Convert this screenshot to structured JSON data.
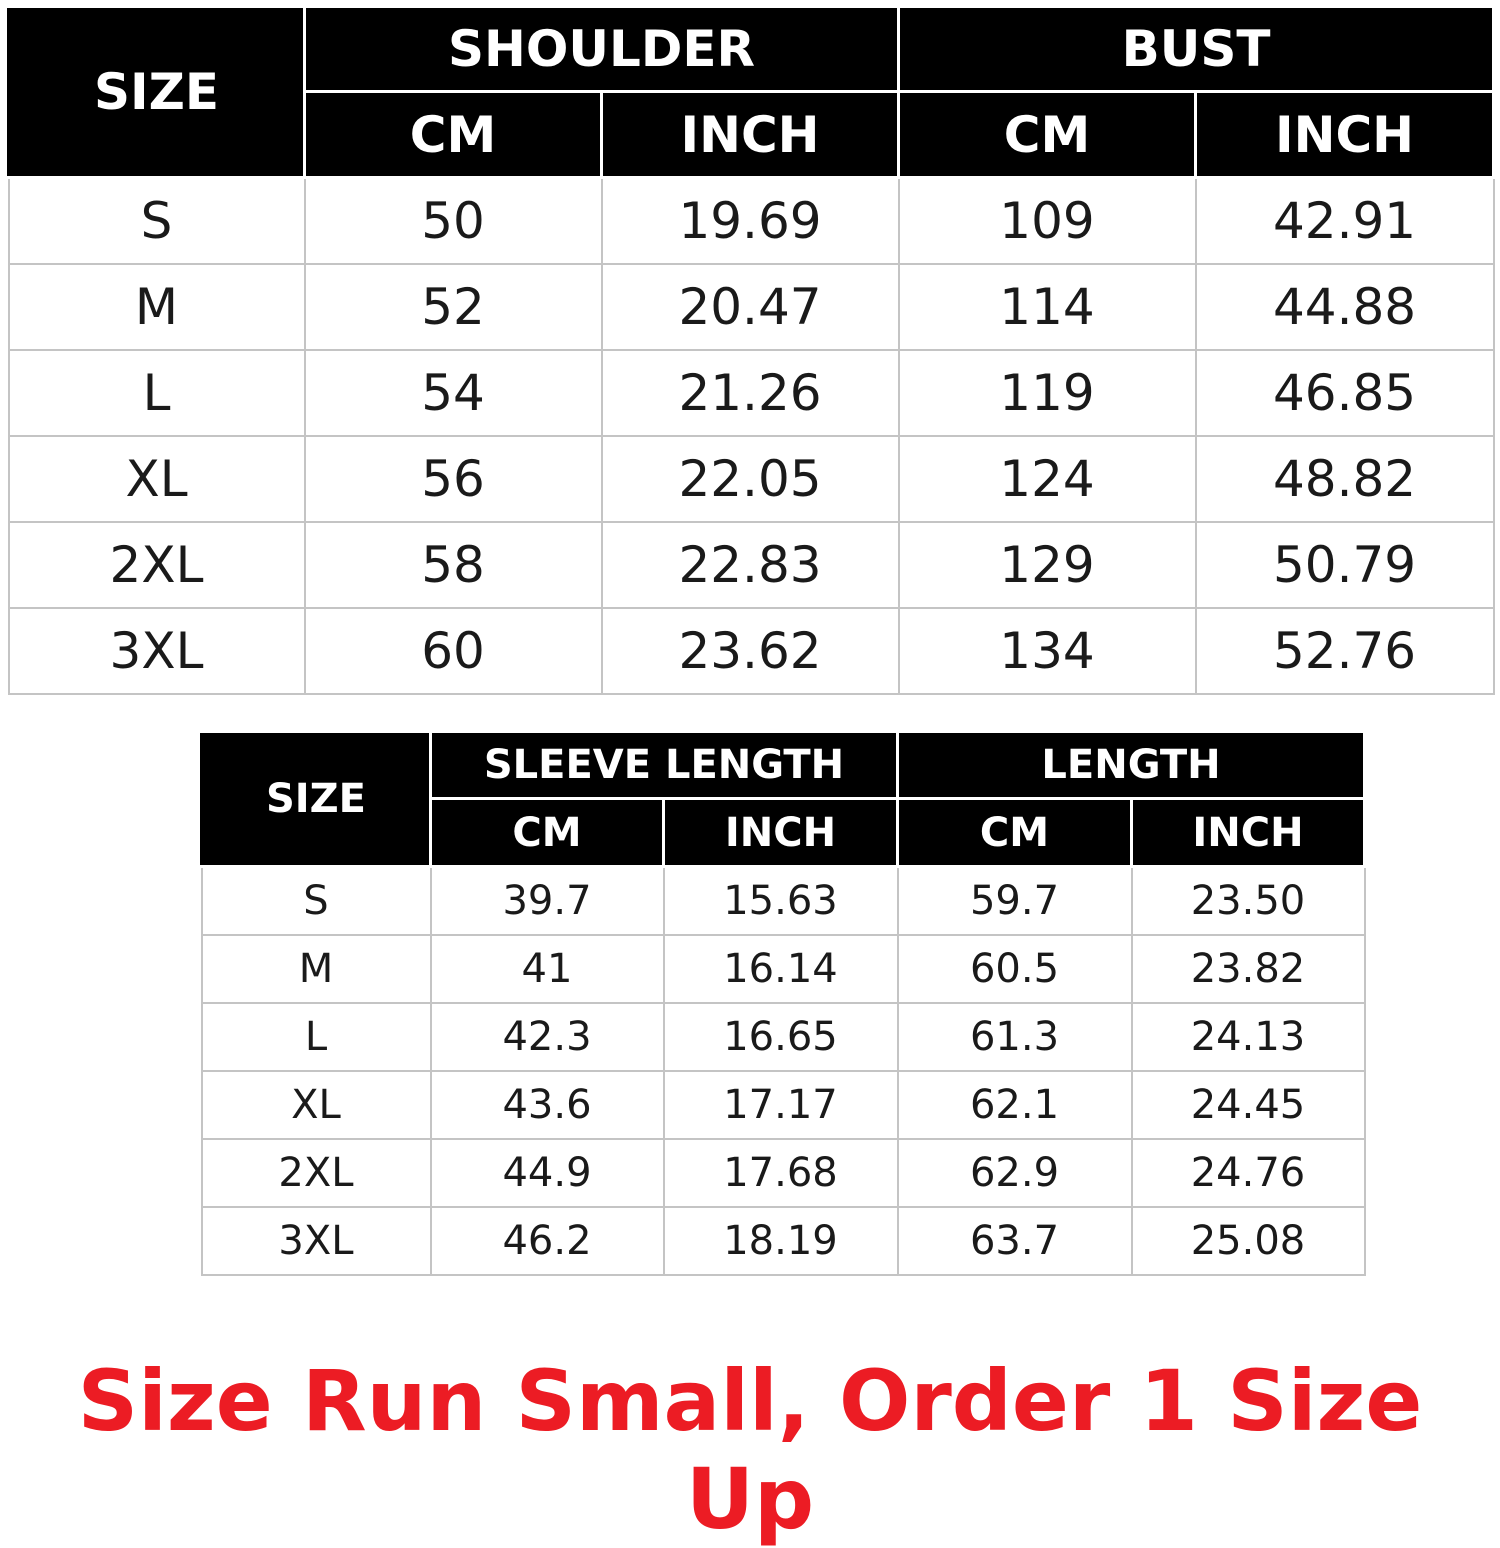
{
  "tables": [
    {
      "size_header": "SIZE",
      "groups": [
        "SHOULDER",
        "BUST"
      ],
      "units": [
        "CM",
        "INCH",
        "CM",
        "INCH"
      ],
      "rows": [
        [
          "S",
          "50",
          "19.69",
          "109",
          "42.91"
        ],
        [
          "M",
          "52",
          "20.47",
          "114",
          "44.88"
        ],
        [
          "L",
          "54",
          "21.26",
          "119",
          "46.85"
        ],
        [
          "XL",
          "56",
          "22.05",
          "124",
          "48.82"
        ],
        [
          "2XL",
          "58",
          "22.83",
          "129",
          "50.79"
        ],
        [
          "3XL",
          "60",
          "23.62",
          "134",
          "52.76"
        ]
      ]
    },
    {
      "size_header": "SIZE",
      "groups": [
        "SLEEVE LENGTH",
        "LENGTH"
      ],
      "units": [
        "CM",
        "INCH",
        "CM",
        "INCH"
      ],
      "rows": [
        [
          "S",
          "39.7",
          "15.63",
          "59.7",
          "23.50"
        ],
        [
          "M",
          "41",
          "16.14",
          "60.5",
          "23.82"
        ],
        [
          "L",
          "42.3",
          "16.65",
          "61.3",
          "24.13"
        ],
        [
          "XL",
          "43.6",
          "17.17",
          "62.1",
          "24.45"
        ],
        [
          "2XL",
          "44.9",
          "17.68",
          "62.9",
          "24.76"
        ],
        [
          "3XL",
          "46.2",
          "18.19",
          "63.7",
          "25.08"
        ]
      ]
    }
  ],
  "note": "Size Run Small, Order 1 Size Up",
  "colors": {
    "header_bg": "#000000",
    "header_text": "#ffffff",
    "note": "#ec1c24",
    "grid": "#c4c4c4"
  }
}
